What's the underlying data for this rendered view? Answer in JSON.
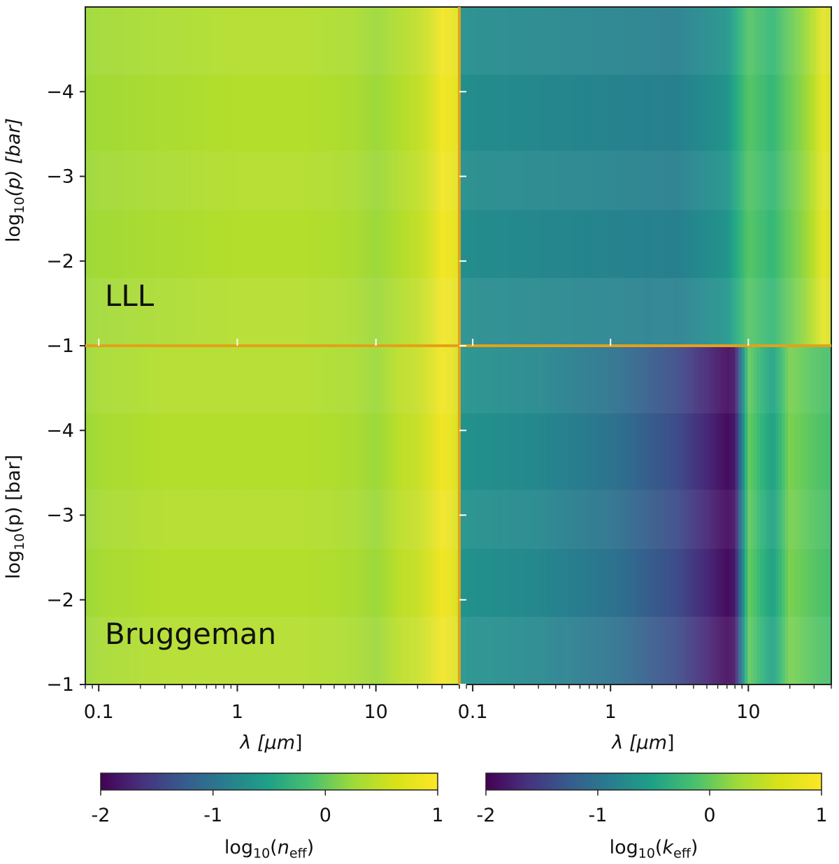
{
  "chart_data": {
    "type": "heatmap",
    "colormap": "viridis",
    "x_scale": "log",
    "xlim": [
      0.08,
      40
    ],
    "xticks": [
      0.1,
      1,
      10
    ],
    "xtick_labels": [
      "0.1",
      "1",
      "10"
    ],
    "xlabel_prefix": "λ [",
    "xlabel_unit": "μm",
    "xlabel_suffix": "]",
    "ylabel_main": "log",
    "ylabel_sub": "10",
    "ylabel_rest": "(p) [bar]",
    "ylim": [
      -5,
      -1
    ],
    "yticks": [
      -4,
      -3,
      -2,
      -1
    ],
    "ytick_labels": [
      "−4",
      "−3",
      "−2",
      "−1"
    ],
    "rows": [
      "LLL",
      "Bruggeman"
    ],
    "columns": [
      "n_eff",
      "k_eff"
    ],
    "row_labels": {
      "top": "LLL",
      "bottom": "Bruggeman"
    },
    "panels": [
      {
        "row": "LLL",
        "quantity": "n_eff",
        "profile_lambda": [
          0.08,
          0.1,
          0.3,
          1,
          3,
          7,
          10,
          15,
          20,
          25,
          30,
          35,
          40
        ],
        "profile_value": [
          0.55,
          0.58,
          0.62,
          0.66,
          0.66,
          0.62,
          0.55,
          0.65,
          0.72,
          0.82,
          0.95,
          0.92,
          0.85
        ]
      },
      {
        "row": "LLL",
        "quantity": "k_eff",
        "profile_lambda": [
          0.08,
          0.1,
          0.3,
          1,
          3,
          7,
          10,
          15,
          20,
          25,
          30,
          35,
          40
        ],
        "profile_value": [
          -0.5,
          -0.55,
          -0.6,
          -0.65,
          -0.7,
          -0.45,
          0.2,
          0.0,
          0.3,
          0.5,
          0.7,
          0.9,
          0.8
        ]
      },
      {
        "row": "Bruggeman",
        "quantity": "n_eff",
        "profile_lambda": [
          0.08,
          0.1,
          0.3,
          1,
          3,
          7,
          10,
          15,
          20,
          25,
          30,
          35,
          40
        ],
        "profile_value": [
          0.55,
          0.6,
          0.66,
          0.66,
          0.66,
          0.62,
          0.55,
          0.7,
          0.75,
          0.85,
          0.95,
          0.9,
          0.8
        ]
      },
      {
        "row": "Bruggeman",
        "quantity": "k_eff",
        "profile_lambda": [
          0.08,
          0.1,
          0.3,
          1,
          3,
          7,
          8,
          10,
          15,
          20,
          30,
          40
        ],
        "profile_value": [
          -0.45,
          -0.5,
          -0.6,
          -0.85,
          -1.3,
          -1.9,
          -1.8,
          0.3,
          -0.3,
          0.4,
          0.2,
          0.1
        ]
      }
    ],
    "colorbars": [
      {
        "ticks": [
          "-2",
          "-1",
          "0",
          "1"
        ],
        "range": [
          -2,
          1
        ],
        "label_main": "log",
        "label_sub": "10",
        "label_open": "(",
        "label_var": "n",
        "label_var_sub": "eff",
        "label_close": ")"
      },
      {
        "ticks": [
          "-2",
          "-1",
          "0",
          "1"
        ],
        "range": [
          -2,
          1
        ],
        "label_main": "log",
        "label_sub": "10",
        "label_open": "(",
        "label_var": "k",
        "label_var_sub": "eff",
        "label_close": ")"
      }
    ],
    "divider_color": "#e5a019"
  }
}
